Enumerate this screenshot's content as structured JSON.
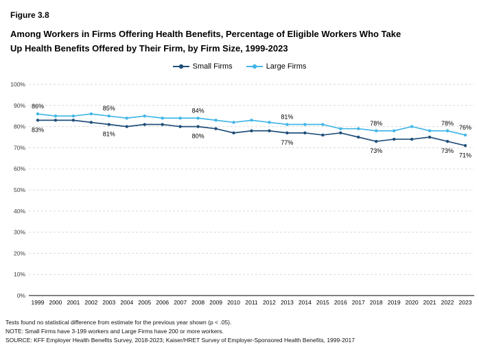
{
  "figure_label": "Figure 3.8",
  "title_line1": "Among Workers in Firms Offering Health Benefits, Percentage of Eligible Workers Who Take",
  "title_line2": "Up Health Benefits Offered by Their Firm, by Firm Size, 1999-2023",
  "legend": [
    {
      "label": "Small Firms",
      "color": "#1F4E79"
    },
    {
      "label": "Large Firms",
      "color": "#41B6E6"
    }
  ],
  "chart_data": {
    "type": "line",
    "title": "Among Workers in Firms Offering Health Benefits, Percentage of Eligible Workers Who Take Up Health Benefits Offered by Their Firm, by Firm Size, 1999-2023",
    "x": [
      1999,
      2000,
      2001,
      2002,
      2003,
      2004,
      2005,
      2006,
      2007,
      2008,
      2009,
      2010,
      2011,
      2012,
      2013,
      2014,
      2015,
      2016,
      2017,
      2018,
      2019,
      2020,
      2021,
      2022,
      2023
    ],
    "series": [
      {
        "name": "Small Firms",
        "color": "#1F4E79",
        "values": [
          83,
          83,
          83,
          82,
          81,
          80,
          81,
          81,
          80,
          80,
          79,
          77,
          78,
          78,
          77,
          77,
          76,
          77,
          75,
          73,
          74,
          74,
          75,
          73,
          71
        ]
      },
      {
        "name": "Large Firms",
        "color": "#41B6E6",
        "values": [
          86,
          85,
          85,
          86,
          85,
          84,
          85,
          84,
          84,
          84,
          83,
          82,
          83,
          82,
          81,
          81,
          81,
          79,
          79,
          78,
          78,
          80,
          78,
          78,
          76
        ]
      }
    ],
    "labeled_years": [
      1999,
      2003,
      2008,
      2013,
      2018,
      2022,
      2023
    ],
    "ylim": [
      0,
      100
    ],
    "yticks": [
      0,
      10,
      20,
      30,
      40,
      50,
      60,
      70,
      80,
      90,
      100
    ],
    "ytick_suffix": "%",
    "grid": true,
    "grid_style": "dashed",
    "legend_position": "top"
  },
  "footnotes": {
    "line1": "Tests found no statistical difference from estimate for the previous year shown (p < .05).",
    "line2": "NOTE: Small Firms have 3-199 workers and Large Firms have 200 or more workers.",
    "line3": "SOURCE: KFF Employer Health Benefits Survey, 2018-2023; Kaiser/HRET Survey of Employer-Sponsored Health Benefits, 1999-2017"
  }
}
